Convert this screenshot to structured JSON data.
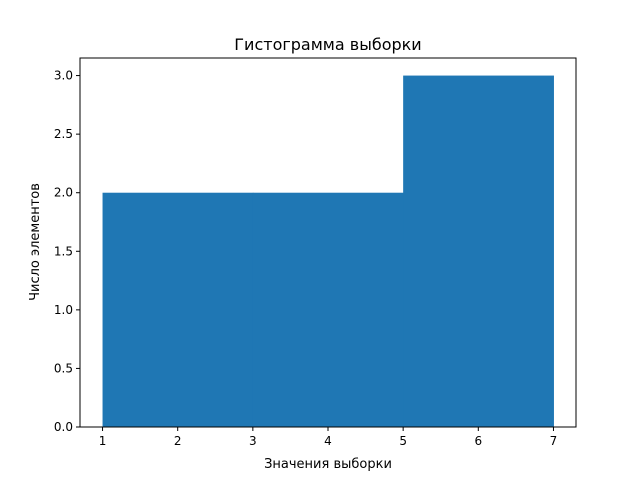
{
  "chart_data": {
    "type": "bar",
    "title": "Гистограмма выборки",
    "xlabel": "Значения выборки",
    "ylabel": "Число элементов",
    "bins": [
      [
        1,
        3
      ],
      [
        3,
        5
      ],
      [
        5,
        7
      ]
    ],
    "values": [
      2,
      2,
      3
    ],
    "xlim": [
      0.7,
      7.3
    ],
    "ylim": [
      0,
      3.15
    ],
    "xticks": [
      "1",
      "2",
      "3",
      "4",
      "5",
      "6",
      "7"
    ],
    "yticks": [
      "0.0",
      "0.5",
      "1.0",
      "1.5",
      "2.0",
      "2.5",
      "3.0"
    ],
    "grid": false,
    "bar_color": "#1f77b4"
  }
}
